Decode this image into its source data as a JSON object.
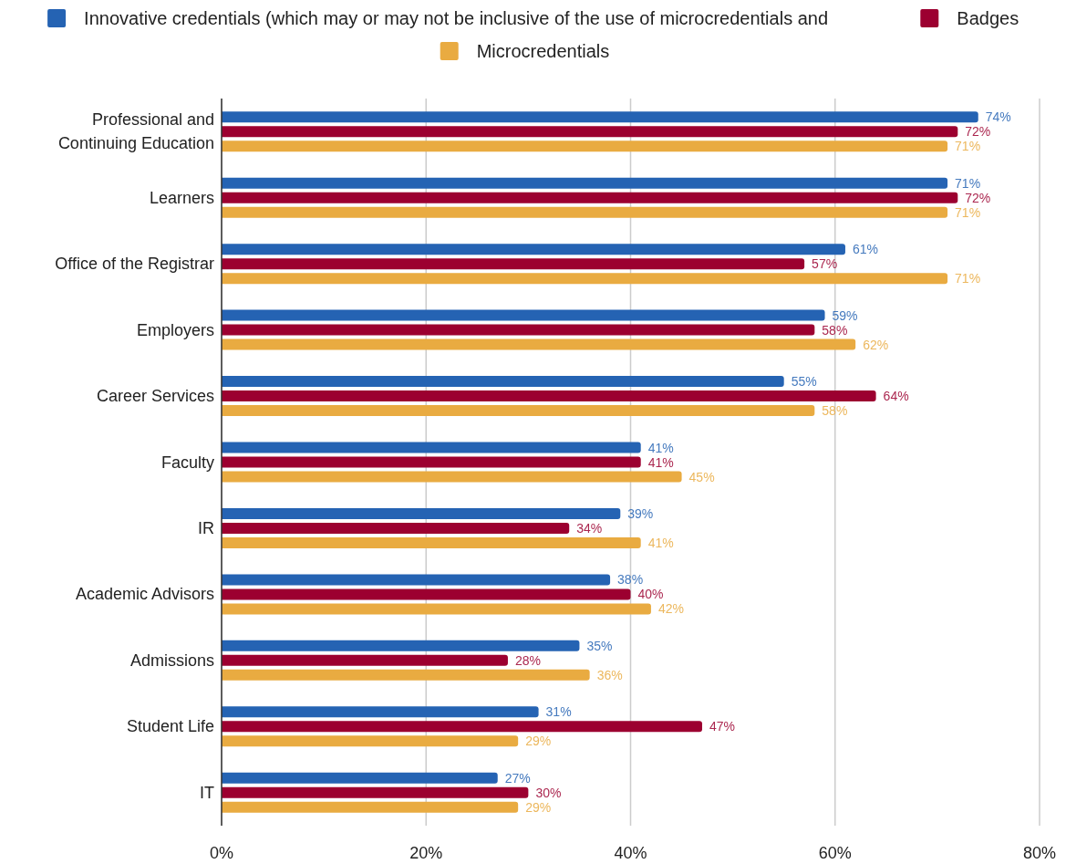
{
  "chart_data": {
    "type": "bar",
    "orientation": "horizontal",
    "categories": [
      "Professional and\nContinuing Education",
      "Learners",
      "Office of the Registrar",
      "Employers",
      "Career Services",
      "Faculty",
      "IR",
      "Academic Advisors",
      "Admissions",
      "Student Life",
      "IT"
    ],
    "series": [
      {
        "name": "Innovative credentials (which may or may not be inclusive of the use of microcredentials and",
        "color": "#2563b3",
        "values": [
          74,
          71,
          61,
          59,
          55,
          41,
          39,
          38,
          35,
          31,
          27
        ],
        "value_labels": [
          "74%",
          "71%",
          "61%",
          "59%",
          "55%",
          "41%",
          "39%",
          "38%",
          "35%",
          "31%",
          "27%"
        ]
      },
      {
        "name": "Badges",
        "color": "#9c0030",
        "values": [
          72,
          72,
          57,
          58,
          64,
          41,
          34,
          40,
          28,
          47,
          30
        ],
        "value_labels": [
          "72%",
          "72%",
          "57%",
          "58%",
          "64%",
          "41%",
          "34%",
          "40%",
          "28%",
          "47%",
          "30%"
        ]
      },
      {
        "name": "Microcredentials",
        "color": "#e9ab41",
        "values": [
          71,
          71,
          71,
          62,
          58,
          45,
          41,
          42,
          36,
          29,
          29
        ],
        "value_labels": [
          "71%",
          "71%",
          "71%",
          "62%",
          "58%",
          "45%",
          "41%",
          "42%",
          "36%",
          "29%",
          "29%"
        ]
      }
    ],
    "xlim": [
      0,
      80
    ],
    "xticks": [
      {
        "value": 0,
        "label": "0%"
      },
      {
        "value": 20,
        "label": "20%"
      },
      {
        "value": 40,
        "label": "40%"
      },
      {
        "value": 60,
        "label": "60%"
      },
      {
        "value": 80,
        "label": "80%"
      }
    ],
    "grid": "x",
    "legend": "top"
  }
}
